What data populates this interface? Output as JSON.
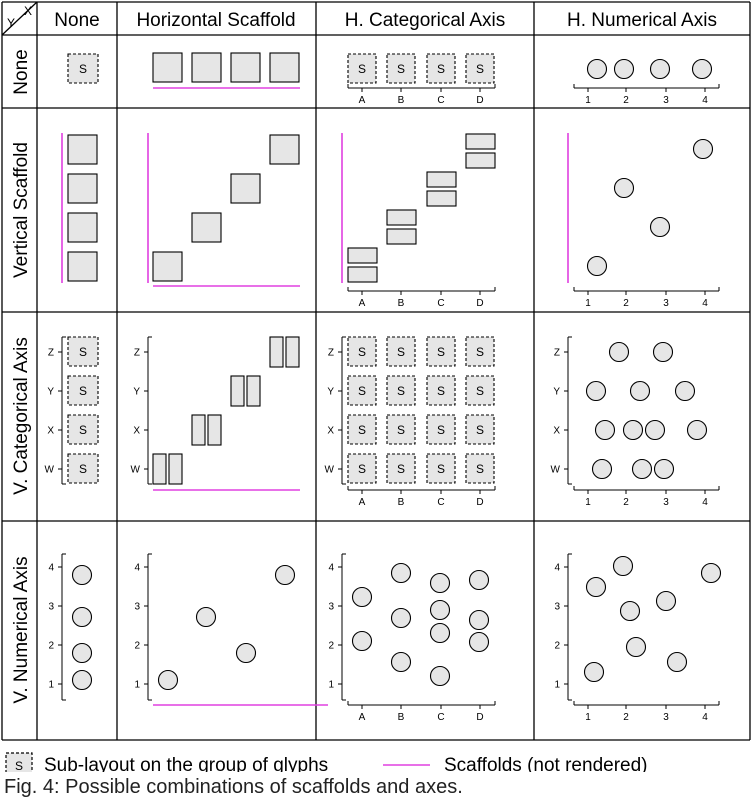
{
  "corner": {
    "y": "Y",
    "x": "X"
  },
  "columns": [
    "None",
    "Horizontal Scaffold",
    "H. Categorical Axis",
    "H. Numerical Axis"
  ],
  "rows": [
    "None",
    "Vertical Scaffold",
    "V. Categorical Axis",
    "V. Numerical Axis"
  ],
  "glyph_sublayout_label": "S",
  "h_categories": [
    "A",
    "B",
    "C",
    "D"
  ],
  "v_categories": [
    "Z",
    "Y",
    "X",
    "W"
  ],
  "numeric_ticks": [
    "1",
    "2",
    "3",
    "4"
  ],
  "legend": {
    "sublayout_symbol": "S",
    "sublayout_label": "Sub-layout on the group of glyphs",
    "scaffold_label": "Scaffolds (not rendered)"
  },
  "caption": "Fig. 4: Possible combinations of scaffolds and axes.",
  "colors": {
    "scaffold": "#e040e0",
    "glyph_fill": "#e6e6e6",
    "stroke": "#000000"
  }
}
